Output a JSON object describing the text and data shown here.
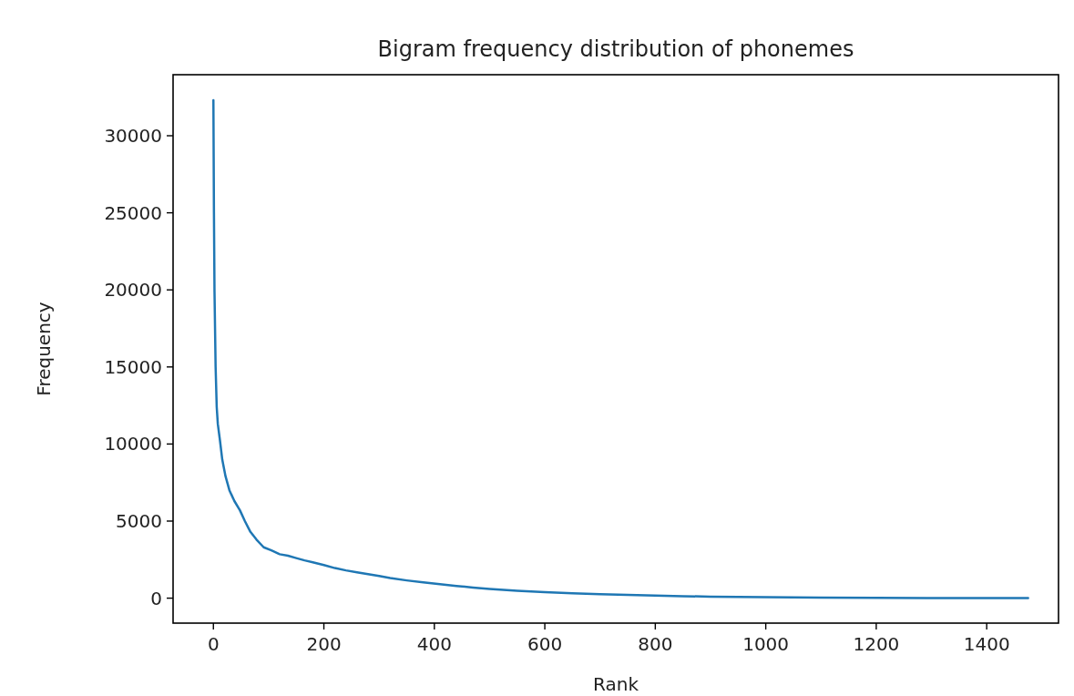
{
  "chart_data": {
    "type": "line",
    "title": "Bigram frequency distribution of phonemes",
    "xlabel": "Rank",
    "ylabel": "Frequency",
    "x": [
      0,
      1,
      2,
      4,
      6,
      8,
      12,
      16,
      22,
      29,
      38,
      48,
      57,
      67,
      78,
      91,
      105,
      120,
      135,
      150,
      165,
      180,
      200,
      220,
      240,
      260,
      280,
      300,
      320,
      350,
      380,
      410,
      440,
      470,
      500,
      550,
      600,
      650,
      700,
      750,
      800,
      850,
      900,
      1000,
      1100,
      1200,
      1300,
      1400,
      1475
    ],
    "series": [
      {
        "color": "#1f77b4",
        "values": [
          32300,
          25000,
          19900,
          15000,
          12400,
          11300,
          10200,
          9000,
          7900,
          7000,
          6300,
          5700,
          5000,
          4300,
          3800,
          3300,
          3100,
          2850,
          2750,
          2600,
          2450,
          2330,
          2150,
          1950,
          1800,
          1680,
          1560,
          1440,
          1300,
          1150,
          1020,
          900,
          790,
          690,
          600,
          480,
          390,
          320,
          260,
          210,
          170,
          130,
          100,
          60,
          40,
          20,
          10,
          10,
          0
        ]
      }
    ],
    "xlim": [
      -73,
      1530
    ],
    "ylim": [
      -1620,
      33960
    ],
    "xticks": [
      0,
      200,
      400,
      600,
      800,
      1000,
      1200,
      1400
    ],
    "yticks": [
      0,
      5000,
      10000,
      15000,
      20000,
      25000,
      30000
    ],
    "grid": false
  }
}
